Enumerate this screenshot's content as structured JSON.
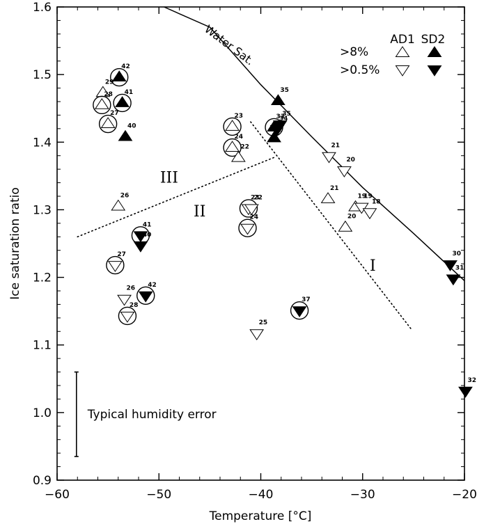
{
  "chart_data": {
    "type": "scatter",
    "xlabel": "Temperature [°C]",
    "ylabel": "Ice saturation ratio",
    "xlim": [
      -60,
      -20
    ],
    "ylim": [
      0.9,
      1.6
    ],
    "xticks": [
      "−60",
      "−50",
      "−40",
      "−30",
      "−20"
    ],
    "yticks": [
      "0.9",
      "1.0",
      "1.1",
      "1.2",
      "1.3",
      "1.4",
      "1.5",
      "1.6"
    ],
    "xtick_values": [
      -60,
      -50,
      -40,
      -30,
      -20
    ],
    "ytick_values": [
      0.9,
      1.0,
      1.1,
      1.2,
      1.3,
      1.4,
      1.5,
      1.6
    ],
    "grid": false,
    "legend": {
      "position": "top-right",
      "columns": [
        "AD1",
        "SD2"
      ],
      "rows": [
        ">8%",
        ">0.5%"
      ]
    },
    "series": [
      {
        "name": "AD1 >8%",
        "marker": "triangle-up",
        "filled": false,
        "points": [
          {
            "x": -55.5,
            "y": 1.473,
            "label": "29"
          },
          {
            "x": -55.6,
            "y": 1.455,
            "label": "28",
            "circled": true
          },
          {
            "x": -55.0,
            "y": 1.427,
            "label": "27",
            "circled": true
          },
          {
            "x": -54.0,
            "y": 1.305,
            "label": "26"
          },
          {
            "x": -42.8,
            "y": 1.423,
            "label": "23",
            "circled": true
          },
          {
            "x": -42.8,
            "y": 1.392,
            "label": "24",
            "circled": true
          },
          {
            "x": -42.2,
            "y": 1.377,
            "label": "22"
          },
          {
            "x": -33.4,
            "y": 1.316,
            "label": "21"
          },
          {
            "x": -30.7,
            "y": 1.304,
            "label": "19"
          },
          {
            "x": -31.7,
            "y": 1.274,
            "label": "20"
          }
        ]
      },
      {
        "name": "SD2 >8%",
        "marker": "triangle-up",
        "filled": true,
        "points": [
          {
            "x": -53.9,
            "y": 1.496,
            "label": "42",
            "circled": true
          },
          {
            "x": -53.6,
            "y": 1.458,
            "label": "41",
            "circled": true
          },
          {
            "x": -53.3,
            "y": 1.408,
            "label": "40"
          },
          {
            "x": -38.3,
            "y": 1.461,
            "label": "35"
          },
          {
            "x": -38.7,
            "y": 1.422,
            "label": "33",
            "circled": true
          },
          {
            "x": -38.7,
            "y": 1.406,
            "label": ""
          }
        ]
      },
      {
        "name": "AD1 >0.5%",
        "marker": "triangle-down",
        "filled": false,
        "points": [
          {
            "x": -33.3,
            "y": 1.379,
            "label": "21"
          },
          {
            "x": -31.8,
            "y": 1.358,
            "label": "20"
          },
          {
            "x": -30.1,
            "y": 1.304,
            "label": "19"
          },
          {
            "x": -29.3,
            "y": 1.296,
            "label": "18"
          },
          {
            "x": -41.2,
            "y": 1.302,
            "label": "23",
            "circled": true
          },
          {
            "x": -40.9,
            "y": 1.302,
            "label": "22"
          },
          {
            "x": -41.3,
            "y": 1.273,
            "label": "24",
            "circled": true
          },
          {
            "x": -54.3,
            "y": 1.218,
            "label": "27",
            "circled": true
          },
          {
            "x": -53.4,
            "y": 1.168,
            "label": "26"
          },
          {
            "x": -53.1,
            "y": 1.143,
            "label": "28",
            "circled": true
          },
          {
            "x": -40.4,
            "y": 1.117,
            "label": "25"
          }
        ]
      },
      {
        "name": "SD2 >0.5%",
        "marker": "triangle-down",
        "filled": true,
        "points": [
          {
            "x": -38.4,
            "y": 1.419,
            "label": "34"
          },
          {
            "x": -38.1,
            "y": 1.426,
            "label": "35"
          },
          {
            "x": -51.8,
            "y": 1.262,
            "label": "41",
            "circled": true
          },
          {
            "x": -51.8,
            "y": 1.247,
            "label": "40"
          },
          {
            "x": -51.3,
            "y": 1.173,
            "label": "42",
            "circled": true
          },
          {
            "x": -36.2,
            "y": 1.151,
            "label": "37",
            "circled": true
          },
          {
            "x": -21.4,
            "y": 1.219,
            "label": "30"
          },
          {
            "x": -21.1,
            "y": 1.198,
            "label": "31"
          },
          {
            "x": -19.9,
            "y": 1.032,
            "label": "32"
          }
        ]
      }
    ],
    "curves": [
      {
        "name": "water-saturation",
        "style": "solid",
        "label": "Water Sat.",
        "points": [
          [
            -49.5,
            1.64
          ],
          [
            -45,
            1.57
          ],
          [
            -40,
            1.485
          ],
          [
            -35,
            1.408
          ],
          [
            -30,
            1.333
          ],
          [
            -25,
            1.265
          ],
          [
            -20,
            1.195
          ]
        ]
      },
      {
        "name": "boundary-II-III",
        "style": "dotted",
        "points": [
          [
            -58,
            1.26
          ],
          [
            -38.6,
            1.378
          ]
        ]
      },
      {
        "name": "boundary-I-II",
        "style": "dotted",
        "points": [
          [
            -41,
            1.43
          ],
          [
            -25.2,
            1.123
          ]
        ]
      }
    ],
    "region_labels": [
      {
        "text": "III",
        "x": -49,
        "y": 1.34
      },
      {
        "text": "II",
        "x": -46,
        "y": 1.29
      },
      {
        "text": "I",
        "x": -29,
        "y": 1.21
      }
    ],
    "error_bar": {
      "label": "Typical humidity error",
      "x": -58.1,
      "y_low": 0.935,
      "y_high": 1.06
    }
  }
}
